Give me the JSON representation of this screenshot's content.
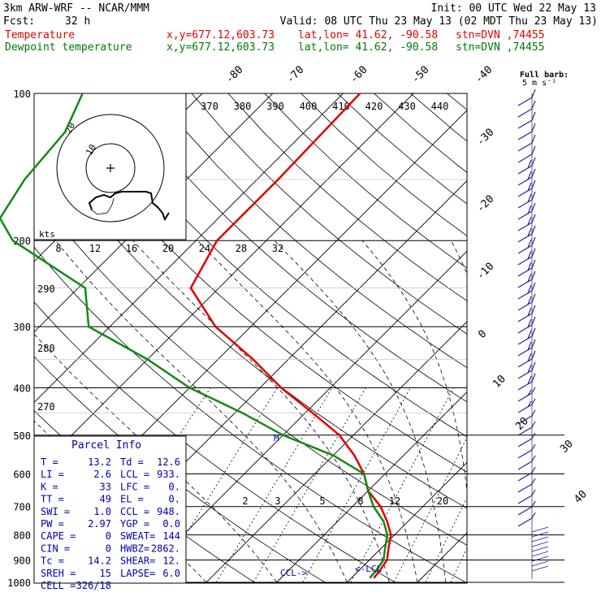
{
  "header": {
    "model": "3km ARW-WRF -- NCAR/MMM",
    "init": "Init: 00 UTC Wed 22 May 13",
    "fcst_label": "Fcst:",
    "fcst_value": "32 h",
    "valid": "Valid: 08 UTC Thu 23 May 13 (02 MDT Thu 23 May 13)",
    "temp_label": "Temperature",
    "dew_label": "Dewpoint temperature",
    "xy": "x,y=677.12,603.73",
    "latlon": "lat,lon= 41.62, -90.58",
    "stn": "stn=DVN ,74455"
  },
  "barb_legend": {
    "line1": "Full barb:",
    "line2": "5 m s⁻¹"
  },
  "hodograph": {
    "units": "kts",
    "ring_labels": [
      "10",
      "20"
    ]
  },
  "parcel": {
    "title": "Parcel Info",
    "rows": [
      [
        "T   =",
        "13.2",
        "Td  =",
        "12.6"
      ],
      [
        "LI  =",
        "2.6",
        "LCL =",
        "933."
      ],
      [
        "K   =",
        "33",
        "LFC =",
        "0."
      ],
      [
        "TT  =",
        "49",
        "EL  =",
        "0."
      ],
      [
        "SWI =",
        "1.0",
        "CCL =",
        "948."
      ],
      [
        "PW  =",
        "2.97",
        "YGP =",
        "0.0"
      ],
      [
        "CAPE =",
        "0",
        "SWEAT=",
        "144"
      ],
      [
        "CIN  =",
        "0",
        "HWBZ=",
        "2862."
      ],
      [
        "Tc  =",
        "14.2",
        "SHEAR=",
        "12."
      ],
      [
        "SREH =",
        "15",
        "LAPSE=",
        "6.0"
      ],
      [
        "CELL =",
        "326/18",
        "",
        ""
      ]
    ]
  },
  "markers": {
    "ccl": "CCL->",
    "lcl": "<-LCL",
    "m": "M"
  },
  "chart_data": {
    "type": "skew-t",
    "pressure_levels": [
      "100",
      "200",
      "300",
      "400",
      "500",
      "600",
      "700",
      "800",
      "900",
      "1000"
    ],
    "isotherm_labels": [
      "-80",
      "-70",
      "-60",
      "-50",
      "-40",
      "-30",
      "-20",
      "-10",
      "0",
      "10",
      "20",
      "30",
      "40"
    ],
    "theta_labels": [
      "370",
      "380",
      "390",
      "400",
      "410",
      "420",
      "430",
      "440"
    ],
    "theta_low_labels": [
      "290",
      "280",
      "270"
    ],
    "mixing_ratio_upper": [
      "8",
      "12",
      "16",
      "20",
      "24",
      "28",
      "32"
    ],
    "mixing_ratio_lower": [
      "2",
      "3",
      "5",
      "8",
      "12",
      "20"
    ],
    "temperature_profile": [
      [
        100,
        -57.6
      ],
      [
        150,
        -57
      ],
      [
        200,
        -57
      ],
      [
        250,
        -54
      ],
      [
        300,
        -45
      ],
      [
        350,
        -35
      ],
      [
        400,
        -27
      ],
      [
        450,
        -19
      ],
      [
        500,
        -12
      ],
      [
        550,
        -7
      ],
      [
        600,
        -3
      ],
      [
        650,
        0
      ],
      [
        700,
        4
      ],
      [
        750,
        7
      ],
      [
        800,
        9.5
      ],
      [
        850,
        11
      ],
      [
        900,
        12.5
      ],
      [
        950,
        13
      ],
      [
        980,
        13.2
      ]
    ],
    "dewpoint_profile": [
      [
        100,
        -97
      ],
      [
        120,
        -94
      ],
      [
        150,
        -93
      ],
      [
        180,
        -91
      ],
      [
        200,
        -86
      ],
      [
        250,
        -69
      ],
      [
        300,
        -63
      ],
      [
        350,
        -50
      ],
      [
        400,
        -40
      ],
      [
        450,
        -29
      ],
      [
        500,
        -20
      ],
      [
        550,
        -10
      ],
      [
        600,
        -3
      ],
      [
        650,
        0
      ],
      [
        700,
        3
      ],
      [
        750,
        6.5
      ],
      [
        800,
        9
      ],
      [
        850,
        10.5
      ],
      [
        900,
        12
      ],
      [
        950,
        12.5
      ],
      [
        980,
        12.6
      ]
    ]
  }
}
